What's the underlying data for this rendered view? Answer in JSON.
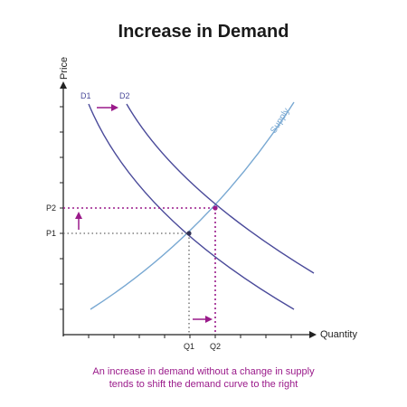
{
  "title": "Increase in Demand",
  "caption": {
    "line1": "An increase in demand without a change in supply",
    "line2": "tends to shift the demand curve to the right"
  },
  "axes": {
    "y_label": "Price",
    "x_label": "Quantity"
  },
  "curves": {
    "d1_label": "D1",
    "d2_label": "D2",
    "supply_label": "Supply"
  },
  "ticks": {
    "p1": "P1",
    "p2": "P2",
    "q1": "Q1",
    "q2": "Q2"
  },
  "colors": {
    "demand": "#4a4a9a",
    "supply": "#78a8d2",
    "accent": "#9a1a8a",
    "axis": "#222222",
    "title": "#1a1a1a"
  }
}
